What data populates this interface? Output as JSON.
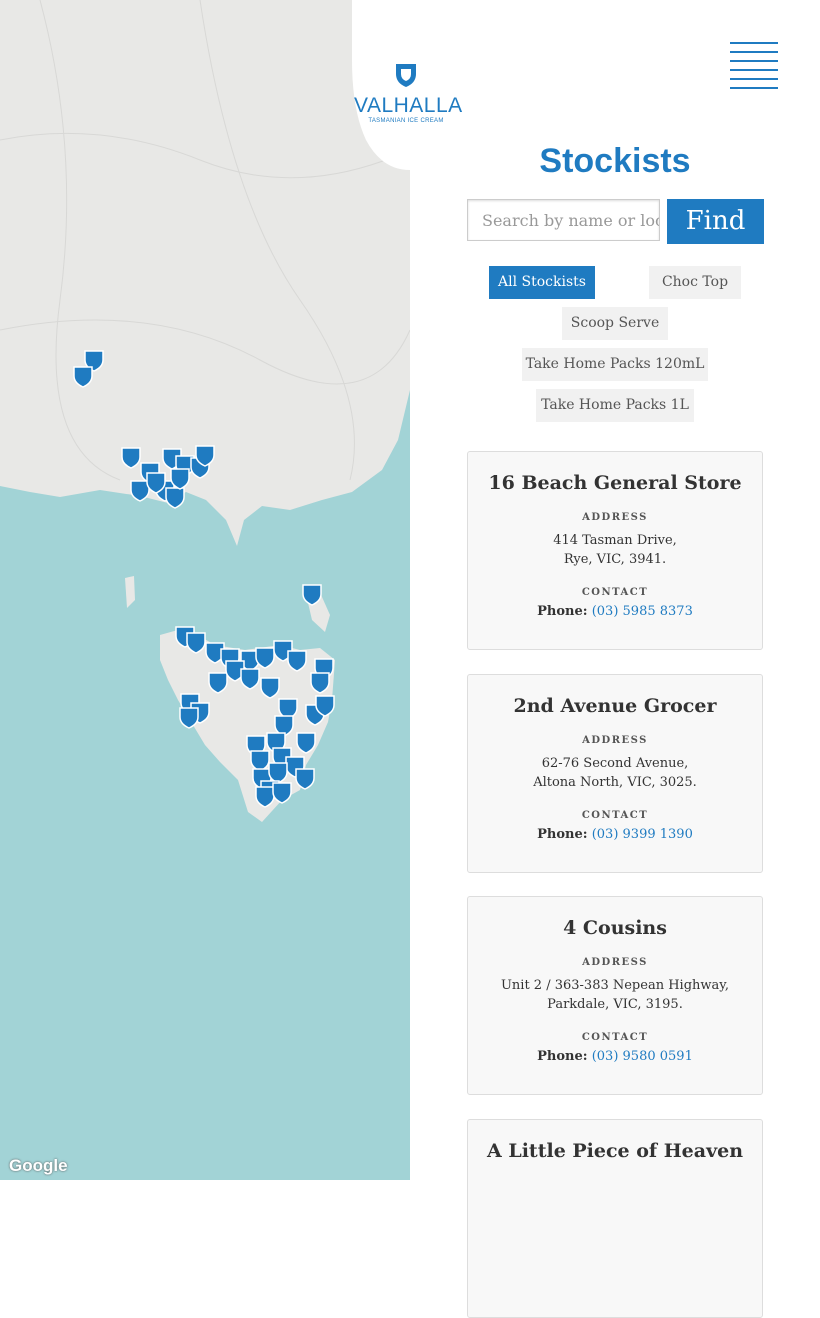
{
  "header": {
    "logo": {
      "name": "VALHALLA",
      "tagline": "TASMANIAN ICE CREAM"
    }
  },
  "title": "Stockists",
  "search": {
    "placeholder": "Search by name or location",
    "button": "Find"
  },
  "filters": [
    "All Stockists",
    "Choc Top",
    "Scoop Serve",
    "Take Home Packs 120mL",
    "Take Home Packs 1L"
  ],
  "stockists": [
    {
      "name": "16 Beach General Store",
      "address_label": "ADDRESS",
      "address": [
        "414 Tasman Drive,",
        "Rye, VIC, 3941."
      ],
      "contact_label": "CONTACT",
      "phone_label": "Phone:",
      "phone": "(03) 5985 8373"
    },
    {
      "name": "2nd Avenue Grocer",
      "address_label": "ADDRESS",
      "address": [
        "62-76 Second Avenue,",
        "Altona North, VIC, 3025."
      ],
      "contact_label": "CONTACT",
      "phone_label": "Phone:",
      "phone": "(03) 9399 1390"
    },
    {
      "name": "4 Cousins",
      "address_label": "ADDRESS",
      "address": [
        "Unit 2 / 363-383 Nepean Highway,",
        "Parkdale, VIC, 3195."
      ],
      "contact_label": "CONTACT",
      "phone_label": "Phone:",
      "phone": "(03) 9580 0591"
    },
    {
      "name": "A Little Piece of Heaven"
    }
  ],
  "map": {
    "attribution": "Google"
  }
}
